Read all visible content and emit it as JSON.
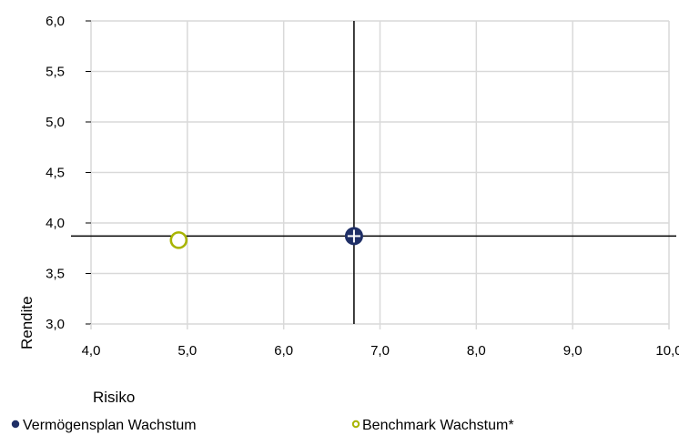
{
  "chart_data": {
    "type": "scatter",
    "title": "",
    "xlabel": "Risiko",
    "ylabel": "Rendite",
    "xlim": [
      4.0,
      10.0
    ],
    "ylim": [
      3.0,
      6.0
    ],
    "x_ticks": [
      4.0,
      5.0,
      6.0,
      7.0,
      8.0,
      9.0,
      10.0
    ],
    "x_tick_labels": [
      "4,0",
      "5,0",
      "6,0",
      "7,0",
      "8,0",
      "9,0",
      "10,0"
    ],
    "y_ticks": [
      3.0,
      3.5,
      4.0,
      4.5,
      5.0,
      5.5,
      6.0
    ],
    "y_tick_labels": [
      "3,0",
      "3,5",
      "4,0",
      "4,5",
      "5,0",
      "5,5",
      "6,0"
    ],
    "grid": "vertical and horizontal gridlines",
    "legend_position": "bottom",
    "series": [
      {
        "name": "Vermögensplan Wachstum",
        "x": [
          6.73
        ],
        "y": [
          3.87
        ],
        "marker": "filled-circle-with-crosshair",
        "color": "#1f2f66"
      },
      {
        "name": "Benchmark Wachstum*",
        "x": [
          4.91
        ],
        "y": [
          3.83
        ],
        "marker": "hollow-circle",
        "color": "#a8b400"
      }
    ],
    "reference_lines": {
      "vertical_x": 6.73,
      "horizontal_y": 3.87,
      "color": "#000000"
    },
    "colors": {
      "grid": "#d9d9d9",
      "axis": "#000000"
    }
  }
}
